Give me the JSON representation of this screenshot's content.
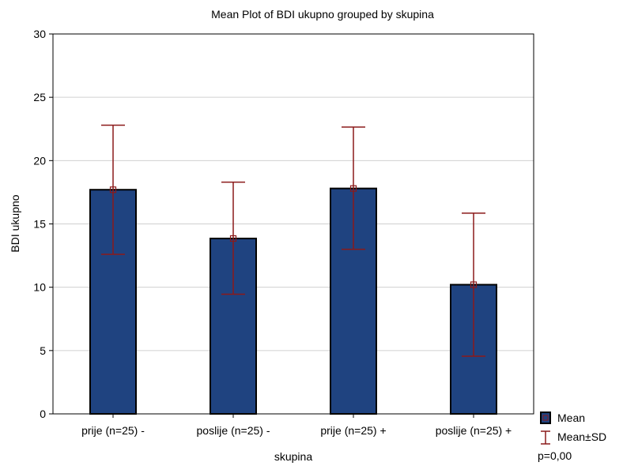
{
  "chart_data": {
    "type": "bar",
    "title": "Mean Plot of BDI ukupno grouped by  skupina",
    "xlabel": "skupina",
    "ylabel": "BDI ukupno",
    "categories": [
      "prije (n=25) -",
      "poslije (n=25) -",
      "prije (n=25) +",
      "poslije (n=25) +"
    ],
    "series": [
      {
        "name": "Mean",
        "values": [
          17.7,
          13.85,
          17.8,
          10.2
        ]
      }
    ],
    "error_bars": {
      "name": "Mean±SD",
      "lower": [
        12.6,
        9.45,
        13.0,
        4.55
      ],
      "upper": [
        22.8,
        18.3,
        22.65,
        15.85
      ]
    },
    "ylim": [
      0,
      30
    ],
    "yticks": [
      0,
      5,
      10,
      15,
      20,
      25,
      30
    ],
    "grid": true,
    "legend_position": "bottom-right",
    "annotation": "p=0,00",
    "colors": {
      "bar": "#1f4380",
      "error": "#8b1a1a",
      "grid": "#d0d0d0"
    }
  }
}
